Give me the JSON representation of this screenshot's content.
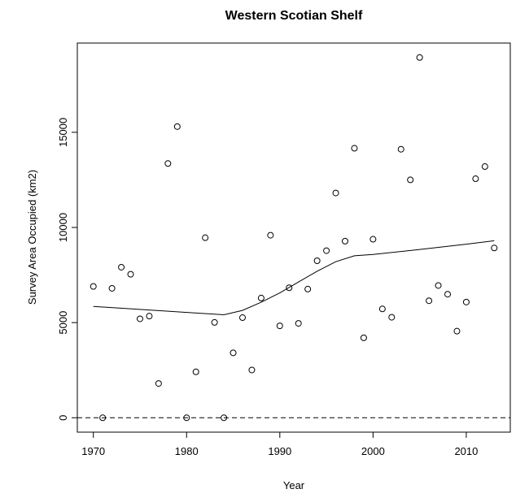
{
  "chart_data": {
    "type": "scatter",
    "title": "Western Scotian Shelf",
    "xlabel": "Year",
    "ylabel": "Survey Area Occupied (km2)",
    "xlim": [
      1968.28,
      2014.72
    ],
    "ylim": [
      -757,
      19690
    ],
    "xticks": [
      1970,
      1980,
      1990,
      2000,
      2010
    ],
    "yticks": [
      0,
      5000,
      10000,
      15000
    ],
    "grid": false,
    "reference_line": {
      "y": 0,
      "style": "dashed"
    },
    "points": {
      "x": [
        1970,
        1971,
        1972,
        1973,
        1974,
        1975,
        1976,
        1977,
        1978,
        1979,
        1980,
        1981,
        1982,
        1983,
        1984,
        1985,
        1986,
        1987,
        1988,
        1989,
        1990,
        1991,
        1992,
        1993,
        1994,
        1995,
        1996,
        1997,
        1998,
        1999,
        2000,
        2001,
        2002,
        2003,
        2004,
        2005,
        2006,
        2007,
        2008,
        2009,
        2010,
        2011,
        2012,
        2013
      ],
      "y": [
        6900,
        0,
        6800,
        7910,
        7540,
        5200,
        5340,
        1800,
        13360,
        15300,
        0,
        2410,
        9460,
        5010,
        0,
        3410,
        5260,
        2510,
        6290,
        9590,
        4830,
        6830,
        4960,
        6760,
        8250,
        8780,
        11810,
        9280,
        14160,
        4200,
        9380,
        5720,
        5280,
        14110,
        12500,
        18930,
        6150,
        6950,
        6490,
        4550,
        6080,
        12560,
        13200,
        8920
      ]
    },
    "smooth_line": {
      "x": [
        1970,
        1984,
        1986,
        1988,
        1990,
        1992,
        1994,
        1996,
        1998,
        2000,
        2005,
        2010,
        2013
      ],
      "y": [
        5850,
        5410,
        5640,
        6070,
        6560,
        7130,
        7700,
        8200,
        8510,
        8580,
        8840,
        9120,
        9300
      ]
    }
  }
}
